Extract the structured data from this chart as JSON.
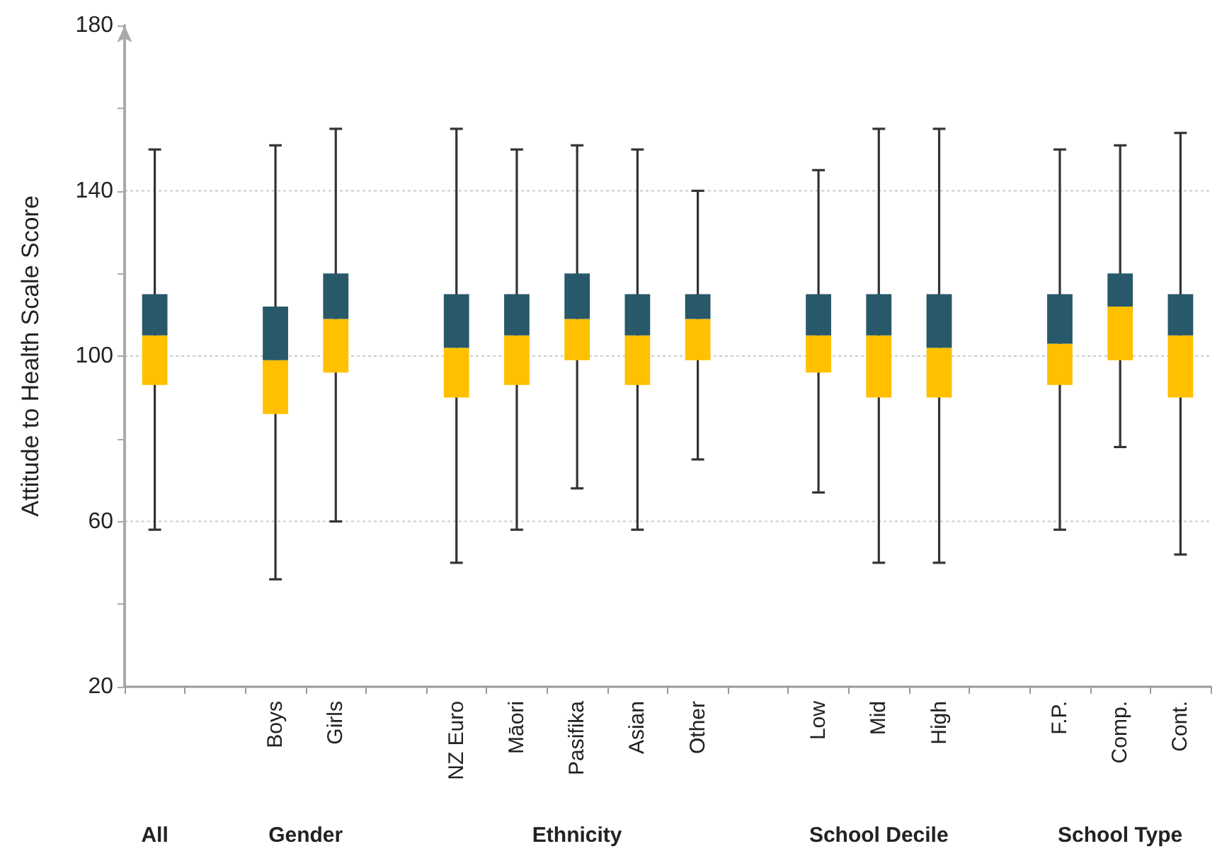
{
  "chart_data": {
    "type": "box",
    "ylabel": "Attitude to Health Scale Score",
    "categories": [
      null,
      null,
      "Boys",
      "Girls",
      null,
      "NZ Euro",
      "Māori",
      "Pasifika",
      "Asian",
      "Other",
      null,
      "Low",
      "Mid",
      "High",
      null,
      "F.P.",
      "Comp.",
      "Cont."
    ],
    "series": [
      {
        "color": "#ffc000",
        "boxes": [
          {
            "low": 58,
            "q1": 93,
            "median": 105,
            "q3": 115,
            "high": 150
          },
          null,
          {
            "low": 46,
            "q1": 86,
            "median": 99,
            "q3": 112,
            "high": 151
          },
          {
            "low": 60,
            "q1": 96,
            "median": 109,
            "q3": 120,
            "high": 155
          },
          null,
          {
            "low": 50,
            "q1": 90,
            "median": 102,
            "q3": 115,
            "high": 155
          },
          {
            "low": 58,
            "q1": 93,
            "median": 105,
            "q3": 115,
            "high": 150
          },
          {
            "low": 68,
            "q1": 99,
            "median": 109,
            "q3": 120,
            "high": 151
          },
          {
            "low": 58,
            "q1": 93,
            "median": 105,
            "q3": 115,
            "high": 150
          },
          {
            "low": 75,
            "q1": 99,
            "median": 109,
            "q3": 115,
            "high": 140
          },
          null,
          {
            "low": 67,
            "q1": 96,
            "median": 105,
            "q3": 115,
            "high": 145
          },
          {
            "low": 50,
            "q1": 90,
            "median": 105,
            "q3": 115,
            "high": 155
          },
          {
            "low": 50,
            "q1": 90,
            "median": 102,
            "q3": 115,
            "high": 155
          },
          null,
          {
            "low": 58,
            "q1": 93,
            "median": 103,
            "q3": 115,
            "high": 150
          },
          {
            "low": 78,
            "q1": 99,
            "median": 112,
            "q3": 120,
            "high": 151
          },
          {
            "low": 52,
            "q1": 90,
            "median": 105,
            "q3": 115,
            "high": 154
          }
        ]
      }
    ],
    "ylim": [
      20,
      180
    ],
    "yticks": [
      20,
      {
        "value": 40,
        "label": null
      },
      60,
      {
        "value": 80,
        "label": null
      },
      100,
      {
        "value": 120,
        "label": null
      },
      140,
      {
        "value": 160,
        "label": null
      },
      180
    ],
    "grid": "y",
    "annotations": [
      "All",
      "Gender",
      "Ethnicity",
      "School Decile",
      "School Type"
    ]
  }
}
